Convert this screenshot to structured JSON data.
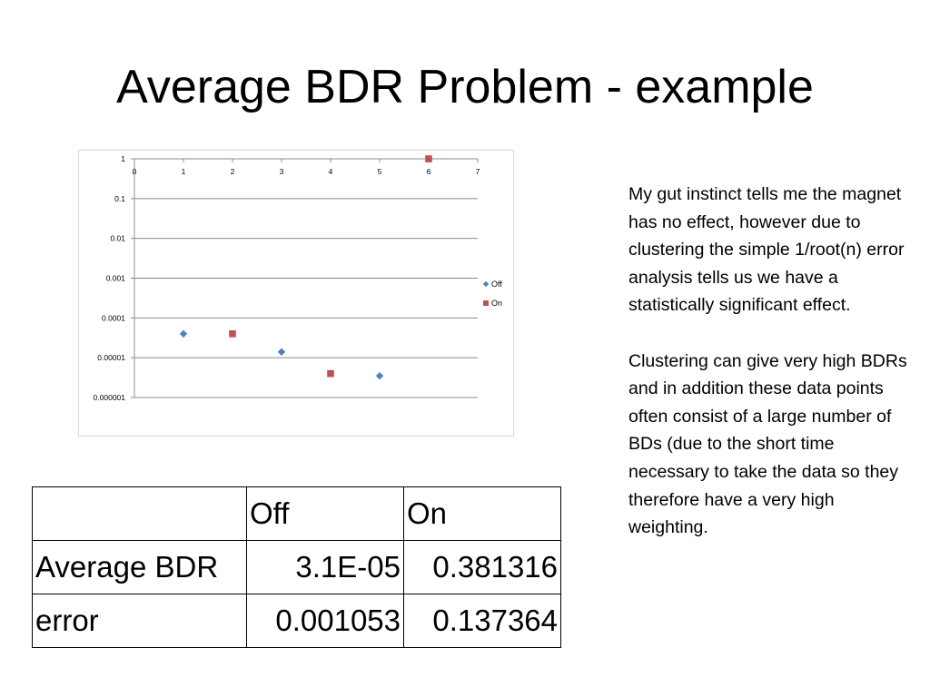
{
  "slide": {
    "title": "Average BDR Problem - example",
    "paragraphs": [
      "My gut instinct tells me the magnet has no effect, however due to clustering the simple 1/root(n) error analysis tells us we have a statistically significant effect.",
      "Clustering can give very high BDRs and in addition these data points often consist of a large number of BDs (due to the short time necessary to take the data so they therefore have a very high weighting."
    ]
  },
  "table": {
    "header": [
      "",
      "Off",
      "On"
    ],
    "rows": [
      [
        "Average BDR",
        "3.1E-05",
        "0.381316"
      ],
      [
        "error",
        "0.001053",
        "0.137364"
      ]
    ]
  },
  "chart_data": {
    "type": "scatter",
    "title": "",
    "xlabel": "",
    "ylabel": "",
    "xlim": [
      0,
      7
    ],
    "ylim": [
      1e-06,
      1
    ],
    "yscale": "log",
    "x_ticks": [
      "0",
      "1",
      "2",
      "3",
      "4",
      "5",
      "6",
      "7"
    ],
    "y_ticks": [
      "1",
      "0.1",
      "0.01",
      "0.001",
      "0.0001",
      "0.00001",
      "0.000001"
    ],
    "x_axis_position": "top",
    "grid": true,
    "legend": "right",
    "series": [
      {
        "name": "Off",
        "marker": "diamond",
        "color": "#4f81bd",
        "points": [
          [
            1,
            4e-05
          ],
          [
            3,
            1.4e-05
          ],
          [
            5,
            3.5e-06
          ]
        ]
      },
      {
        "name": "On",
        "marker": "square",
        "color": "#c0504d",
        "points": [
          [
            2,
            4e-05
          ],
          [
            4,
            4e-06
          ],
          [
            6,
            1
          ]
        ]
      }
    ]
  }
}
